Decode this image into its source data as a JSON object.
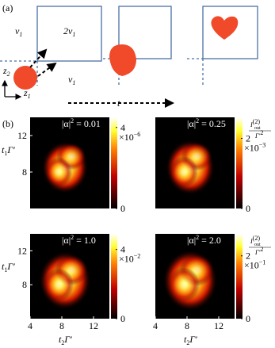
{
  "panel_a": {
    "label": "(a)",
    "region_left": {
      "base": "v",
      "sub": "1"
    },
    "region_square": {
      "base": "2v",
      "sub": "1"
    },
    "region_below": {
      "base": "v",
      "sub": "1"
    },
    "axis_vertical": {
      "base": "z",
      "sub": "2"
    },
    "axis_horizontal": {
      "base": "z",
      "sub": "1"
    },
    "time": "t"
  },
  "panel_b": {
    "label": "(b)",
    "y_label": {
      "base": "t",
      "sub": "1",
      "tail": "Γ′"
    },
    "x_label": {
      "base": "t",
      "sub": "2",
      "tail": "Γ′"
    },
    "colorbar_label": {
      "num_base": "I",
      "num_sup": "(2)",
      "num_sub": "out",
      "den_base": "Γ′",
      "den_sup": "2"
    },
    "xlim": [
      4,
      14
    ],
    "ylim": [
      4,
      14
    ],
    "xticks": [
      4,
      8,
      12
    ],
    "yticks": [
      8,
      12
    ],
    "maps": [
      {
        "alpha": {
          "pre": "|α|",
          "sup": "2",
          "post": " = 0.01"
        },
        "cbar_lim": [
          0,
          4.5
        ],
        "cbar_ticks": [
          0,
          4
        ],
        "scale": {
          "base": "×10",
          "exp": "−6"
        }
      },
      {
        "alpha": {
          "pre": "|α|",
          "sup": "2",
          "post": " = 0.25"
        },
        "cbar_lim": [
          0,
          2.6
        ],
        "cbar_ticks": [
          0,
          2
        ],
        "scale": {
          "base": "×10",
          "exp": "−3"
        }
      },
      {
        "alpha": {
          "pre": "|α|",
          "sup": "2",
          "post": " = 1.0"
        },
        "cbar_lim": [
          0,
          4.9
        ],
        "cbar_ticks": [
          0,
          4
        ],
        "scale": {
          "base": "×10",
          "exp": "−2"
        }
      },
      {
        "alpha": {
          "pre": "|α|",
          "sup": "2",
          "post": " = 2.0"
        },
        "cbar_lim": [
          0,
          2.7
        ],
        "cbar_ticks": [
          0,
          2
        ],
        "scale": {
          "base": "×10",
          "exp": "−1"
        }
      }
    ]
  }
}
